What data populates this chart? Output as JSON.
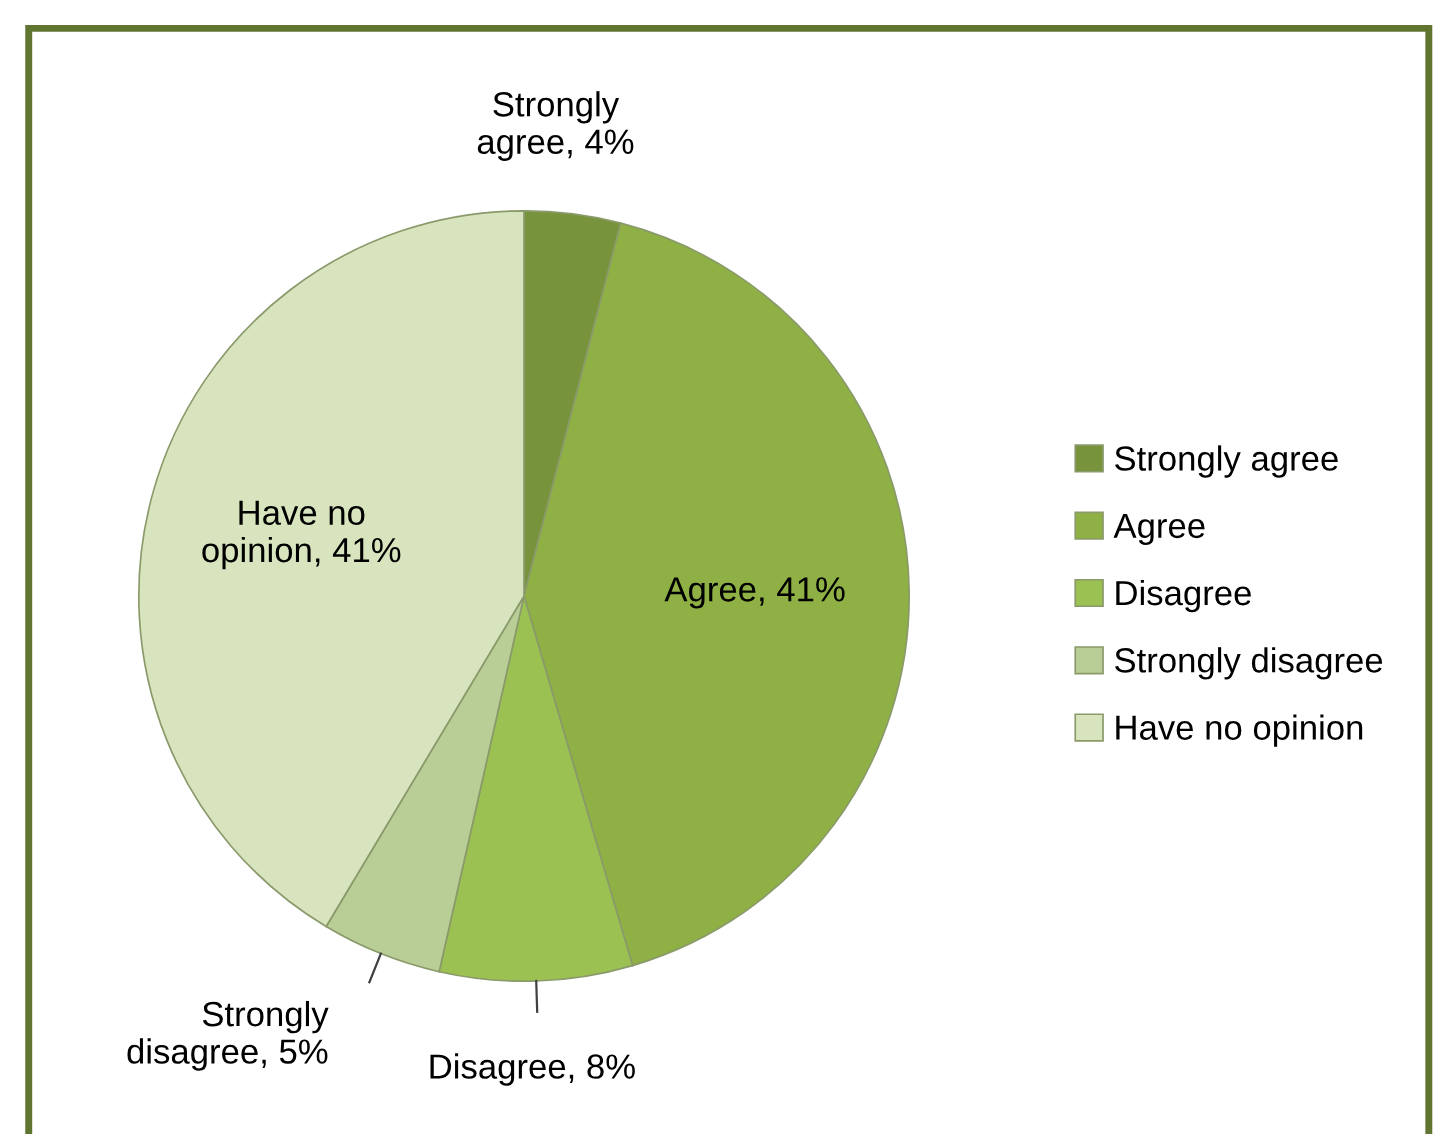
{
  "chart_data": {
    "type": "pie",
    "categories": [
      "Strongly agree",
      "Agree",
      "Disagree",
      "Strongly disagree",
      "Have no opinion"
    ],
    "values": [
      4,
      41,
      8,
      5,
      41
    ],
    "colors": [
      "#77933c",
      "#8fb044",
      "#9bc152",
      "#b9cd96",
      "#d7e4bd"
    ],
    "value_labels": [
      "Strongly\nagree, 4%",
      "Agree, 41%",
      "Disagree, 8%",
      "Strongly\ndisagree, 5%",
      "Have no\nopinion, 41%"
    ],
    "legend": "right"
  }
}
